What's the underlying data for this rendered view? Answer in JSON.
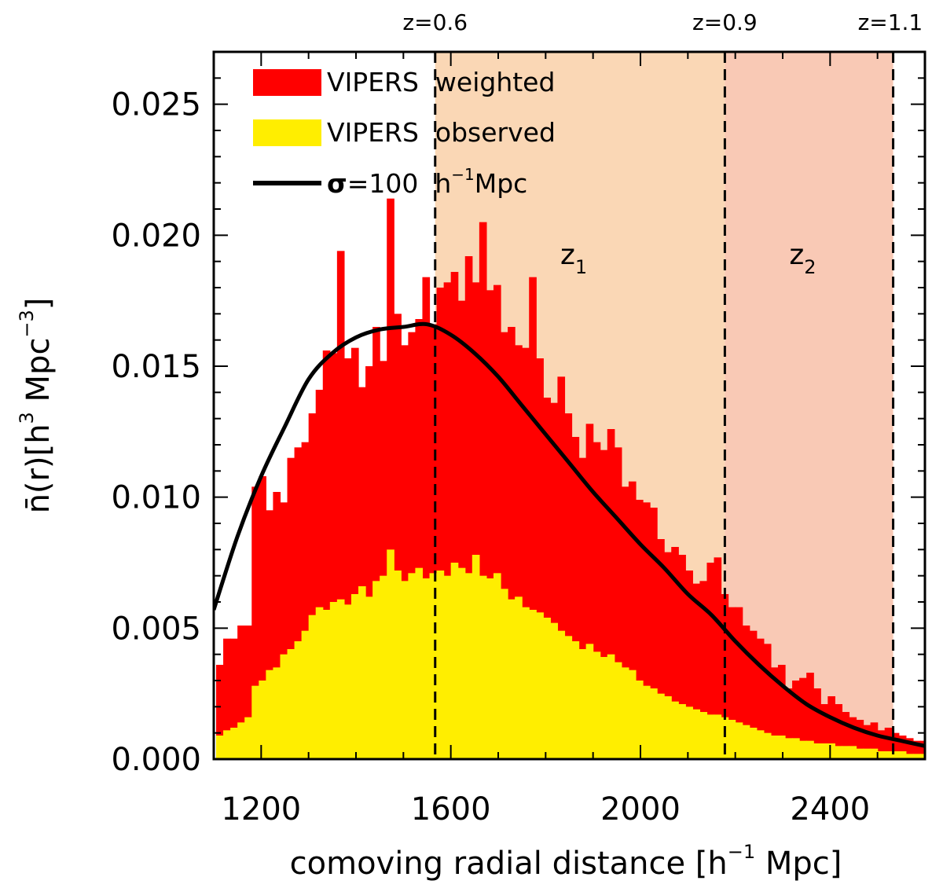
{
  "colors": {
    "weighted": "#ff0000",
    "observed": "#ffee00",
    "curve": "#000000",
    "z1_band": "#fad7b5",
    "z2_band": "#f9c9b5"
  },
  "chart_data": {
    "type": "bar",
    "x_axis": {
      "label_main": "comoving radial distance [h",
      "label_sup": "−1",
      "label_end": " Mpc]",
      "range": [
        1100,
        2600
      ],
      "ticks": [
        "1200",
        "1600",
        "2000",
        "2400"
      ],
      "tick_values": [
        1200,
        1600,
        2000,
        2400
      ]
    },
    "y_axis": {
      "label_main": "n̄(r)[h",
      "label_sup1": "3",
      "label_mid": " Mpc",
      "label_sup2": "−3",
      "label_end": "]",
      "range": [
        0,
        0.027
      ],
      "ticks": [
        "0.000",
        "0.005",
        "0.010",
        "0.015",
        "0.020",
        "0.025"
      ],
      "tick_values": [
        0,
        0.005,
        0.01,
        0.015,
        0.02,
        0.025
      ]
    },
    "top_axis": {
      "labels": [
        "z=0.6",
        "z=0.9",
        "z=1.1"
      ],
      "positions": [
        1567,
        2178,
        2533
      ]
    },
    "regions": [
      {
        "label": "z",
        "sub": "1",
        "from": 1567,
        "to": 2178
      },
      {
        "label": "z",
        "sub": "2",
        "from": 2178,
        "to": 2533
      }
    ],
    "legend": {
      "placement": "top-left",
      "entries": [
        {
          "kind": "weighted",
          "label": "VIPERS  weighted"
        },
        {
          "kind": "observed",
          "label": "VIPERS  observed"
        },
        {
          "kind": "curve",
          "label_sigma": "σ",
          "label_rest": "=100  h",
          "label_sup": "−1",
          "label_end": "Mpc"
        }
      ]
    },
    "histogram": {
      "x_start": 1105,
      "bin_width": 15,
      "series": [
        {
          "name": "VIPERS  weighted",
          "values": [
            0.0036,
            0.0046,
            0.0046,
            0.0051,
            0.0051,
            0.0104,
            0.0108,
            0.0095,
            0.0102,
            0.0098,
            0.0115,
            0.0119,
            0.0121,
            0.0132,
            0.0141,
            0.0156,
            0.0155,
            0.0194,
            0.0153,
            0.0157,
            0.0142,
            0.015,
            0.0165,
            0.0152,
            0.0214,
            0.017,
            0.0158,
            0.0163,
            0.0168,
            0.0184,
            0.0166,
            0.018,
            0.0182,
            0.0186,
            0.0175,
            0.0192,
            0.0182,
            0.0205,
            0.0179,
            0.0181,
            0.0163,
            0.0165,
            0.0158,
            0.0157,
            0.0184,
            0.0153,
            0.0138,
            0.0136,
            0.0146,
            0.0132,
            0.0123,
            0.0115,
            0.0128,
            0.0121,
            0.0118,
            0.0126,
            0.0119,
            0.0104,
            0.0106,
            0.0099,
            0.0098,
            0.0096,
            0.0084,
            0.0079,
            0.0081,
            0.0078,
            0.0072,
            0.0067,
            0.0068,
            0.0075,
            0.0077,
            0.0063,
            0.0058,
            0.0058,
            0.0051,
            0.0049,
            0.0046,
            0.0044,
            0.0035,
            0.0036,
            0.0027,
            0.003,
            0.0031,
            0.0033,
            0.0027,
            0.0021,
            0.0024,
            0.0021,
            0.0018,
            0.0016,
            0.0015,
            0.0013,
            0.0014,
            0.0011,
            0.0012,
            0.001,
            0.0009,
            0.0008,
            0.0007,
            0.0007,
            0.0006,
            0.0006,
            0.0005,
            0.0005,
            0.0004,
            0.0004,
            0.0004,
            0.0004,
            0.0003,
            0.0003
          ]
        },
        {
          "name": "VIPERS  observed",
          "values": [
            0.0009,
            0.0011,
            0.0012,
            0.0014,
            0.0016,
            0.0028,
            0.003,
            0.0034,
            0.0035,
            0.004,
            0.0042,
            0.0045,
            0.0049,
            0.0055,
            0.0058,
            0.0057,
            0.006,
            0.0061,
            0.0059,
            0.0063,
            0.0066,
            0.0062,
            0.0068,
            0.007,
            0.008,
            0.0072,
            0.0068,
            0.0071,
            0.0073,
            0.0069,
            0.0071,
            0.0072,
            0.007,
            0.0075,
            0.0073,
            0.0071,
            0.0078,
            0.007,
            0.0069,
            0.0071,
            0.0065,
            0.0061,
            0.0062,
            0.0058,
            0.0057,
            0.0056,
            0.0054,
            0.0052,
            0.0049,
            0.0047,
            0.0045,
            0.0042,
            0.0044,
            0.0041,
            0.0039,
            0.004,
            0.0037,
            0.0035,
            0.0034,
            0.003,
            0.0028,
            0.0027,
            0.0025,
            0.0024,
            0.0022,
            0.0021,
            0.002,
            0.0019,
            0.0018,
            0.0017,
            0.0017,
            0.0016,
            0.0015,
            0.0014,
            0.0013,
            0.0012,
            0.0011,
            0.001,
            0.0009,
            0.0009,
            0.0008,
            0.0008,
            0.0007,
            0.0007,
            0.0006,
            0.0006,
            0.0006,
            0.0005,
            0.0005,
            0.0005,
            0.0004,
            0.0004,
            0.0004,
            0.0003,
            0.0003,
            0.0003,
            0.0003,
            0.0002,
            0.0002,
            0.0002,
            0.0002,
            0.0002,
            0.0002,
            0.0001,
            0.0001,
            0.0001,
            0.0001,
            0.0001,
            0.0001,
            0.0001
          ]
        }
      ]
    },
    "curve": {
      "name": "σ=100 h⁻¹Mpc",
      "x": [
        1100,
        1150,
        1200,
        1250,
        1300,
        1350,
        1400,
        1450,
        1500,
        1550,
        1600,
        1650,
        1700,
        1750,
        1800,
        1850,
        1900,
        1950,
        2000,
        2050,
        2100,
        2150,
        2200,
        2250,
        2300,
        2350,
        2400,
        2450,
        2500,
        2550,
        2600
      ],
      "y": [
        0.0057,
        0.0085,
        0.0108,
        0.0127,
        0.0145,
        0.0155,
        0.0161,
        0.0164,
        0.0165,
        0.0166,
        0.0162,
        0.0155,
        0.0146,
        0.0135,
        0.0124,
        0.0113,
        0.0102,
        0.0092,
        0.0082,
        0.0073,
        0.0063,
        0.0055,
        0.0045,
        0.0036,
        0.0028,
        0.0021,
        0.0016,
        0.0012,
        0.0009,
        0.0007,
        0.0005
      ]
    },
    "vlines": [
      1567,
      2178,
      2533
    ]
  }
}
